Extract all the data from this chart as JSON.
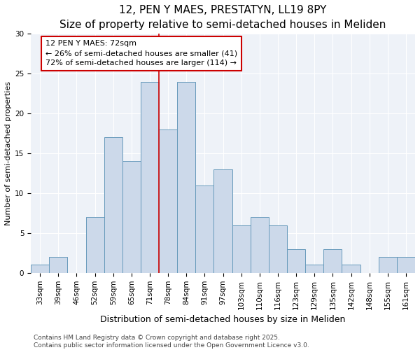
{
  "title": "12, PEN Y MAES, PRESTATYN, LL19 8PY",
  "subtitle": "Size of property relative to semi-detached houses in Meliden",
  "xlabel": "Distribution of semi-detached houses by size in Meliden",
  "ylabel": "Number of semi-detached properties",
  "categories": [
    "33sqm",
    "39sqm",
    "46sqm",
    "52sqm",
    "59sqm",
    "65sqm",
    "71sqm",
    "78sqm",
    "84sqm",
    "91sqm",
    "97sqm",
    "103sqm",
    "110sqm",
    "116sqm",
    "123sqm",
    "129sqm",
    "135sqm",
    "142sqm",
    "148sqm",
    "155sqm",
    "161sqm"
  ],
  "values": [
    1,
    2,
    0,
    7,
    17,
    14,
    24,
    18,
    24,
    11,
    13,
    6,
    7,
    6,
    3,
    1,
    3,
    1,
    0,
    2,
    2
  ],
  "bar_color": "#ccd9ea",
  "bar_edge_color": "#6699bb",
  "vline_x": 6.5,
  "vline_color": "#cc0000",
  "annotation_label": "12 PEN Y MAES: 72sqm",
  "smaller_pct": "26%",
  "smaller_count": 41,
  "larger_pct": "72%",
  "larger_count": 114,
  "ann_box_facecolor": "#ffffff",
  "ann_box_edgecolor": "#cc0000",
  "ylim": [
    0,
    30
  ],
  "yticks": [
    0,
    5,
    10,
    15,
    20,
    25,
    30
  ],
  "plot_bg": "#eef2f8",
  "fig_bg": "#ffffff",
  "grid_color": "#ffffff",
  "title_fontsize": 11,
  "subtitle_fontsize": 9,
  "xlabel_fontsize": 9,
  "ylabel_fontsize": 8,
  "tick_fontsize": 7.5,
  "ann_fontsize": 8,
  "footer_fontsize": 6.5,
  "footer": "Contains HM Land Registry data © Crown copyright and database right 2025.\nContains public sector information licensed under the Open Government Licence v3.0."
}
